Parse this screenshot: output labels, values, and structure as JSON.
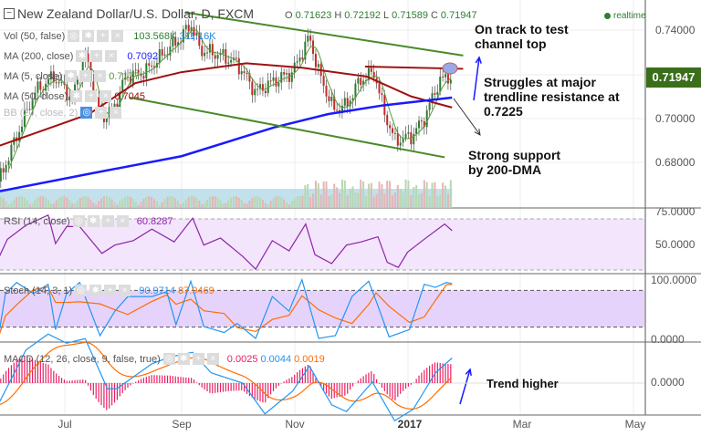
{
  "header": {
    "title": "New Zealand Dollar/U.S. Dollar, D, FXCM",
    "ohlc": {
      "o_label": "O",
      "o": "0.71623",
      "h_label": "H",
      "h": "0.72192",
      "l_label": "L",
      "l": "0.71589",
      "c_label": "C",
      "c": "0.71947"
    },
    "realtime": "realtime"
  },
  "legend": {
    "vol": {
      "label": "Vol (50, false)",
      "v1": "103.568K",
      "v2": "311.16K"
    },
    "ma200": {
      "label": "MA (200, close)",
      "value": "0.7092"
    },
    "ma5": {
      "label": "MA (5, close)",
      "value": "0.7177"
    },
    "ma50": {
      "label": "MA (50, close)",
      "value": "0.7045"
    },
    "bb": {
      "label": "BB (20, close, 2)"
    },
    "rsi": {
      "label": "RSI (14, close)",
      "value": "60.8287"
    },
    "stoch": {
      "label": "Stoch (14, 3, 1)",
      "k": "90.9714",
      "d": "87.9469"
    },
    "macd": {
      "label": "MACD (12, 26, close, 9, false, true)",
      "hist": "0.0025",
      "macd": "0.0044",
      "signal": "0.0019"
    }
  },
  "price_tag": "0.71947",
  "annotations": {
    "a1": "On track to test channel top",
    "a2": "Struggles at major trendline resistance at 0.7225",
    "a3": "Strong support by 200-DMA",
    "a4": "Trend higher"
  },
  "colors": {
    "up": "#2e7d32",
    "down": "#c62828",
    "ma200": "#1a1aff",
    "ma50": "#a01010",
    "ma5": "#5a9a3a",
    "channel": "#4a8a2a",
    "rsi": "#8e24aa",
    "stoch_k": "#2196f3",
    "stoch_d": "#ff6d00",
    "macd": "#2196f3",
    "signal": "#ff6d00",
    "hist": "#e91e63",
    "tag": "#3a6e1a"
  },
  "chart_data": [
    {
      "type": "candlestick",
      "title": "New Zealand Dollar/U.S. Dollar, D, FXCM",
      "x_ticks": [
        "Jul",
        "Sep",
        "Nov",
        "2017",
        "Mar",
        "May"
      ],
      "y_ticks": [
        "0.74000",
        "0.70000",
        "0.68000"
      ],
      "ylim": [
        0.665,
        0.75
      ],
      "close": [
        [
          "2016-05-26",
          0.671
        ],
        [
          "2016-06-05",
          0.692
        ],
        [
          "2016-06-15",
          0.712
        ],
        [
          "2016-06-25",
          0.719
        ],
        [
          "2016-07-05",
          0.709
        ],
        [
          "2016-07-12",
          0.729
        ],
        [
          "2016-07-20",
          0.7
        ],
        [
          "2016-07-27",
          0.704
        ],
        [
          "2016-08-03",
          0.719
        ],
        [
          "2016-08-13",
          0.721
        ],
        [
          "2016-08-23",
          0.729
        ],
        [
          "2016-09-02",
          0.737
        ],
        [
          "2016-09-07",
          0.743
        ],
        [
          "2016-09-12",
          0.731
        ],
        [
          "2016-09-22",
          0.729
        ],
        [
          "2016-10-02",
          0.725
        ],
        [
          "2016-10-12",
          0.712
        ],
        [
          "2016-10-22",
          0.717
        ],
        [
          "2016-11-01",
          0.721
        ],
        [
          "2016-11-10",
          0.737
        ],
        [
          "2016-11-15",
          0.721
        ],
        [
          "2016-11-23",
          0.704
        ],
        [
          "2016-11-30",
          0.706
        ],
        [
          "2016-12-07",
          0.717
        ],
        [
          "2016-12-15",
          0.721
        ],
        [
          "2016-12-20",
          0.704
        ],
        [
          "2016-12-26",
          0.69
        ],
        [
          "2017-01-04",
          0.692
        ],
        [
          "2017-01-11",
          0.7
        ],
        [
          "2017-01-19",
          0.717
        ],
        [
          "2017-01-26",
          0.7195
        ]
      ],
      "ma50": [
        [
          "2016-05-26",
          0.6875
        ],
        [
          "2016-07-14",
          0.702
        ],
        [
          "2016-08-08",
          0.716
        ],
        [
          "2016-09-02",
          0.721
        ],
        [
          "2016-10-07",
          0.725
        ],
        [
          "2016-11-06",
          0.723
        ],
        [
          "2016-12-11",
          0.719
        ],
        [
          "2017-01-04",
          0.71
        ],
        [
          "2017-01-26",
          0.705
        ]
      ],
      "ma200": [
        [
          "2016-05-26",
          0.667
        ],
        [
          "2016-07-14",
          0.675
        ],
        [
          "2016-09-02",
          0.683
        ],
        [
          "2016-10-22",
          0.696
        ],
        [
          "2016-11-20",
          0.702
        ],
        [
          "2016-12-20",
          0.706
        ],
        [
          "2017-01-26",
          0.7095
        ]
      ],
      "channel_upper": [
        [
          "2016-09-04",
          0.748
        ],
        [
          "2017-02-01",
          0.7285
        ]
      ],
      "channel_lower": [
        [
          "2016-08-05",
          0.7095
        ],
        [
          "2017-01-22",
          0.6825
        ]
      ],
      "resistance": [
        [
          "2016-12-10",
          0.7235
        ],
        [
          "2017-02-01",
          0.7225
        ]
      ]
    },
    {
      "type": "line",
      "name": "RSI",
      "y_ticks": [
        "75.0000",
        "50.0000"
      ],
      "bands": [
        30,
        70
      ],
      "values": [
        [
          "2016-05-26",
          38.5
        ],
        [
          "2016-05-31",
          54
        ],
        [
          "2016-06-10",
          65
        ],
        [
          "2016-06-22",
          73
        ],
        [
          "2016-06-26",
          50.7
        ],
        [
          "2016-07-02",
          64
        ],
        [
          "2016-07-09",
          64
        ],
        [
          "2016-07-21",
          43
        ],
        [
          "2016-07-28",
          49.5
        ],
        [
          "2016-08-07",
          53
        ],
        [
          "2016-08-17",
          62
        ],
        [
          "2016-08-29",
          52
        ],
        [
          "2016-09-08",
          70.6
        ],
        [
          "2016-09-14",
          49.5
        ],
        [
          "2016-09-23",
          55
        ],
        [
          "2016-10-05",
          40.7
        ],
        [
          "2016-10-12",
          30.7
        ],
        [
          "2016-10-21",
          53
        ],
        [
          "2016-10-30",
          45
        ],
        [
          "2016-11-08",
          66
        ],
        [
          "2016-11-13",
          42
        ],
        [
          "2016-11-22",
          35
        ],
        [
          "2016-11-30",
          49.5
        ],
        [
          "2016-12-08",
          52
        ],
        [
          "2016-12-17",
          56
        ],
        [
          "2016-12-22",
          36
        ],
        [
          "2016-12-28",
          32
        ],
        [
          "2017-01-02",
          44
        ],
        [
          "2017-01-10",
          53
        ],
        [
          "2017-01-16",
          59.5
        ],
        [
          "2017-01-22",
          66
        ],
        [
          "2017-01-26",
          60.8
        ]
      ]
    },
    {
      "type": "line",
      "name": "Stoch",
      "y_ticks": [
        "100.0000",
        "0.0000"
      ],
      "bands": [
        20,
        80
      ],
      "k": [
        [
          "2016-05-26",
          1.5
        ],
        [
          "2016-05-30",
          75
        ],
        [
          "2016-06-05",
          93
        ],
        [
          "2016-06-14",
          75
        ],
        [
          "2016-06-22",
          90
        ],
        [
          "2016-06-26",
          16
        ],
        [
          "2016-07-02",
          75
        ],
        [
          "2016-07-09",
          93
        ],
        [
          "2016-07-20",
          6
        ],
        [
          "2016-07-28",
          46
        ],
        [
          "2016-08-04",
          70
        ],
        [
          "2016-08-17",
          70
        ],
        [
          "2016-08-25",
          78
        ],
        [
          "2016-08-30",
          24
        ],
        [
          "2016-09-07",
          95
        ],
        [
          "2016-09-14",
          21
        ],
        [
          "2016-09-25",
          11
        ],
        [
          "2016-10-02",
          26
        ],
        [
          "2016-10-12",
          1.5
        ],
        [
          "2016-10-21",
          70
        ],
        [
          "2016-10-30",
          46
        ],
        [
          "2016-11-06",
          97.5
        ],
        [
          "2016-11-15",
          1.5
        ],
        [
          "2016-11-24",
          6
        ],
        [
          "2016-12-03",
          70
        ],
        [
          "2016-12-12",
          95
        ],
        [
          "2016-12-16",
          63
        ],
        [
          "2016-12-23",
          4
        ],
        [
          "2017-01-03",
          16
        ],
        [
          "2017-01-11",
          90
        ],
        [
          "2017-01-17",
          85
        ],
        [
          "2017-01-23",
          93
        ],
        [
          "2017-01-26",
          91
        ]
      ]
    },
    {
      "type": "line",
      "name": "MACD",
      "y_ticks": [
        "0.0000"
      ],
      "macd": [
        [
          "2016-05-26",
          -0.0038
        ],
        [
          "2016-06-10",
          0.0058
        ],
        [
          "2016-06-22",
          0.0086
        ],
        [
          "2016-07-02",
          0.007
        ],
        [
          "2016-07-12",
          0.0078
        ],
        [
          "2016-07-24",
          -0.001
        ],
        [
          "2016-07-29",
          -0.001
        ],
        [
          "2016-08-17",
          0.0034
        ],
        [
          "2016-08-27",
          0.0046
        ],
        [
          "2016-09-08",
          0.0054
        ],
        [
          "2016-09-18",
          0.0018
        ],
        [
          "2016-10-05",
          0
        ],
        [
          "2016-10-17",
          -0.0054
        ],
        [
          "2016-11-01",
          -0.0014
        ],
        [
          "2016-11-10",
          0.003
        ],
        [
          "2016-11-22",
          -0.0038
        ],
        [
          "2016-11-30",
          -0.005
        ],
        [
          "2016-12-14",
          0.0002
        ],
        [
          "2016-12-26",
          -0.0066
        ],
        [
          "2017-01-05",
          -0.0046
        ],
        [
          "2017-01-17",
          0.0018
        ],
        [
          "2017-01-26",
          0.0044
        ]
      ]
    }
  ]
}
